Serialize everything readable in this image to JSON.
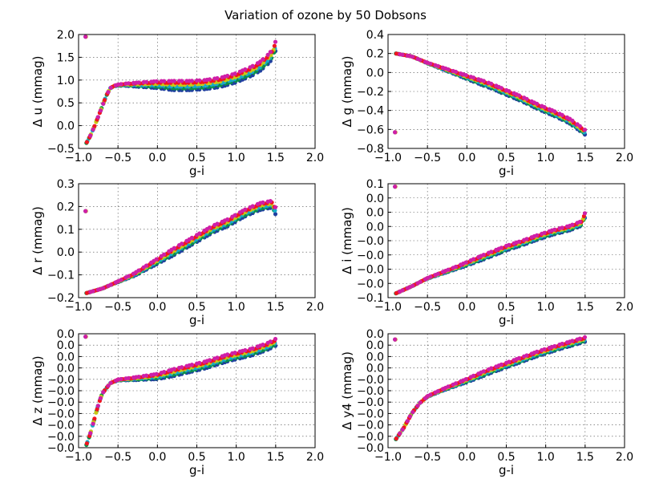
{
  "figure": {
    "title": "Variation of ozone by 50 Dobsons"
  },
  "series_colors": [
    "#1f3f9f",
    "#0b8f4a",
    "#17a9c9",
    "#c7c915",
    "#f0151f",
    "#cf1fa7"
  ],
  "chart_data": [
    {
      "type": "scatter",
      "ylabel": "Δ u (mmag)",
      "xlabel": "g-i",
      "xlim": [
        -1.0,
        2.0
      ],
      "ylim": [
        -0.5,
        2.0
      ],
      "xticks": [
        "−1.0",
        "−0.5",
        "0.0",
        "0.5",
        "1.0",
        "1.5",
        "2.0"
      ],
      "yticks": [
        "−0.5",
        "0.0",
        "0.5",
        "1.0",
        "1.5",
        "2.0"
      ],
      "grid": true,
      "curve": [
        [
          -0.9,
          -0.38
        ],
        [
          -0.85,
          -0.22
        ],
        [
          -0.8,
          -0.02
        ],
        [
          -0.75,
          0.2
        ],
        [
          -0.7,
          0.42
        ],
        [
          -0.65,
          0.65
        ],
        [
          -0.6,
          0.82
        ],
        [
          -0.55,
          0.87
        ],
        [
          -0.5,
          0.89
        ],
        [
          -0.4,
          0.9
        ],
        [
          -0.2,
          0.9
        ],
        [
          0.0,
          0.9
        ],
        [
          0.2,
          0.88
        ],
        [
          0.4,
          0.88
        ],
        [
          0.6,
          0.9
        ],
        [
          0.8,
          0.95
        ],
        [
          1.0,
          1.05
        ],
        [
          1.2,
          1.2
        ],
        [
          1.3,
          1.3
        ],
        [
          1.4,
          1.45
        ],
        [
          1.45,
          1.55
        ],
        [
          1.5,
          1.75
        ],
        [
          1.53,
          1.95
        ]
      ],
      "spread": 0.2
    },
    {
      "type": "scatter",
      "ylabel": "Δ g (mmag)",
      "xlabel": "g-i",
      "xlim": [
        -1.0,
        2.0
      ],
      "ylim": [
        -0.8,
        0.4
      ],
      "xticks": [
        "−1.0",
        "−0.5",
        "0.0",
        "0.5",
        "1.0",
        "1.5",
        "2.0"
      ],
      "yticks": [
        "−0.8",
        "−0.6",
        "−0.4",
        "−0.2",
        "0.0",
        "0.2",
        "0.4"
      ],
      "grid": true,
      "curve": [
        [
          -0.9,
          0.2
        ],
        [
          -0.7,
          0.17
        ],
        [
          -0.5,
          0.1
        ],
        [
          -0.3,
          0.04
        ],
        [
          -0.1,
          -0.02
        ],
        [
          0.1,
          -0.08
        ],
        [
          0.3,
          -0.14
        ],
        [
          0.5,
          -0.21
        ],
        [
          0.7,
          -0.28
        ],
        [
          0.9,
          -0.36
        ],
        [
          1.1,
          -0.43
        ],
        [
          1.3,
          -0.51
        ],
        [
          1.5,
          -0.63
        ]
      ],
      "spread": 0.05
    },
    {
      "type": "scatter",
      "ylabel": "Δ r (mmag)",
      "xlabel": "g-i",
      "xlim": [
        -1.0,
        2.0
      ],
      "ylim": [
        -0.2,
        0.3
      ],
      "xticks": [
        "−1.0",
        "−0.5",
        "0.0",
        "0.5",
        "1.0",
        "1.5",
        "2.0"
      ],
      "yticks": [
        "−0.2",
        "−0.1",
        "0.0",
        "0.1",
        "0.2",
        "0.3"
      ],
      "grid": true,
      "curve": [
        [
          -0.9,
          -0.18
        ],
        [
          -0.7,
          -0.16
        ],
        [
          -0.5,
          -0.13
        ],
        [
          -0.3,
          -0.1
        ],
        [
          -0.1,
          -0.06
        ],
        [
          0.1,
          -0.02
        ],
        [
          0.3,
          0.02
        ],
        [
          0.5,
          0.06
        ],
        [
          0.7,
          0.1
        ],
        [
          0.9,
          0.13
        ],
        [
          1.1,
          0.17
        ],
        [
          1.3,
          0.2
        ],
        [
          1.45,
          0.21
        ],
        [
          1.5,
          0.18
        ]
      ],
      "spread": 0.03
    },
    {
      "type": "scatter",
      "ylabel": "Δ i (mmag)",
      "xlabel": "g-i",
      "xlim": [
        -1.0,
        2.0
      ],
      "ylim": [
        -0.1,
        0.1
      ],
      "xticks": [
        "−1.0",
        "−0.5",
        "0.0",
        "0.5",
        "1.0",
        "1.5",
        "2.0"
      ],
      "yticks": [
        "−0.1",
        "0.0",
        "0.0",
        "0.0",
        "−0.0",
        "−0.0",
        "−0.0",
        "−0.0",
        "−0.1"
      ],
      "tick_labels_shown": [
        "0.1",
        "0.0",
        "0.0",
        "0.0",
        "−0.0",
        "−0.0",
        "−0.0",
        "−0.0",
        "−0.1"
      ],
      "grid": true,
      "curve": [
        [
          -0.9,
          -0.0925
        ],
        [
          -0.7,
          -0.08
        ],
        [
          -0.5,
          -0.066
        ],
        [
          -0.3,
          -0.056
        ],
        [
          -0.1,
          -0.046
        ],
        [
          0.1,
          -0.035
        ],
        [
          0.3,
          -0.024
        ],
        [
          0.5,
          -0.013
        ],
        [
          0.7,
          -0.004
        ],
        [
          0.9,
          0.006
        ],
        [
          1.1,
          0.015
        ],
        [
          1.3,
          0.022
        ],
        [
          1.45,
          0.03
        ],
        [
          1.5,
          0.045
        ],
        [
          1.51,
          0.095
        ]
      ],
      "spread": 0.008
    },
    {
      "type": "scatter",
      "ylabel": "Δ z (mmag)",
      "xlabel": "g-i",
      "xlim": [
        -1.0,
        2.0
      ],
      "ylim": [
        -0.01,
        0.01
      ],
      "xticks": [
        "−1.0",
        "−0.5",
        "0.0",
        "0.5",
        "1.0",
        "1.5",
        "2.0"
      ],
      "tick_labels_shown": [
        "0.0",
        "0.0",
        "0.0",
        "0.0",
        "−0.0",
        "−0.0",
        "−0.0",
        "−0.0",
        "−0.0",
        "−0.0",
        "−0.0"
      ],
      "grid": true,
      "curve": [
        [
          -0.9,
          -0.0095
        ],
        [
          -0.85,
          -0.0075
        ],
        [
          -0.8,
          -0.005
        ],
        [
          -0.75,
          -0.0025
        ],
        [
          -0.7,
          -0.0005
        ],
        [
          -0.6,
          0.0013
        ],
        [
          -0.5,
          0.0019
        ],
        [
          -0.3,
          0.0021
        ],
        [
          0.0,
          0.0025
        ],
        [
          0.3,
          0.0035
        ],
        [
          0.6,
          0.0045
        ],
        [
          0.9,
          0.0058
        ],
        [
          1.2,
          0.0068
        ],
        [
          1.4,
          0.0078
        ],
        [
          1.5,
          0.0085
        ],
        [
          1.52,
          0.0095
        ]
      ],
      "spread": 0.0012
    },
    {
      "type": "scatter",
      "ylabel": "Δ y4 (mmag)",
      "xlabel": "g-i",
      "xlim": [
        -1.0,
        2.0
      ],
      "ylim": [
        -0.01,
        0.01
      ],
      "xticks": [
        "−1.0",
        "−0.5",
        "0.0",
        "0.5",
        "1.0",
        "1.5",
        "2.0"
      ],
      "tick_labels_shown": [
        "0.0",
        "0.0",
        "0.0",
        "0.0",
        "−0.0",
        "−0.0",
        "−0.0",
        "−0.0",
        "−0.0",
        "−0.0",
        "−0.0"
      ],
      "grid": true,
      "curve": [
        [
          -0.9,
          -0.0085
        ],
        [
          -0.8,
          -0.0065
        ],
        [
          -0.7,
          -0.004
        ],
        [
          -0.6,
          -0.0022
        ],
        [
          -0.5,
          -0.001
        ],
        [
          -0.3,
          0.0002
        ],
        [
          0.0,
          0.0018
        ],
        [
          0.3,
          0.0035
        ],
        [
          0.6,
          0.005
        ],
        [
          0.9,
          0.0065
        ],
        [
          1.2,
          0.0078
        ],
        [
          1.5,
          0.009
        ]
      ],
      "spread": 0.0008
    }
  ]
}
